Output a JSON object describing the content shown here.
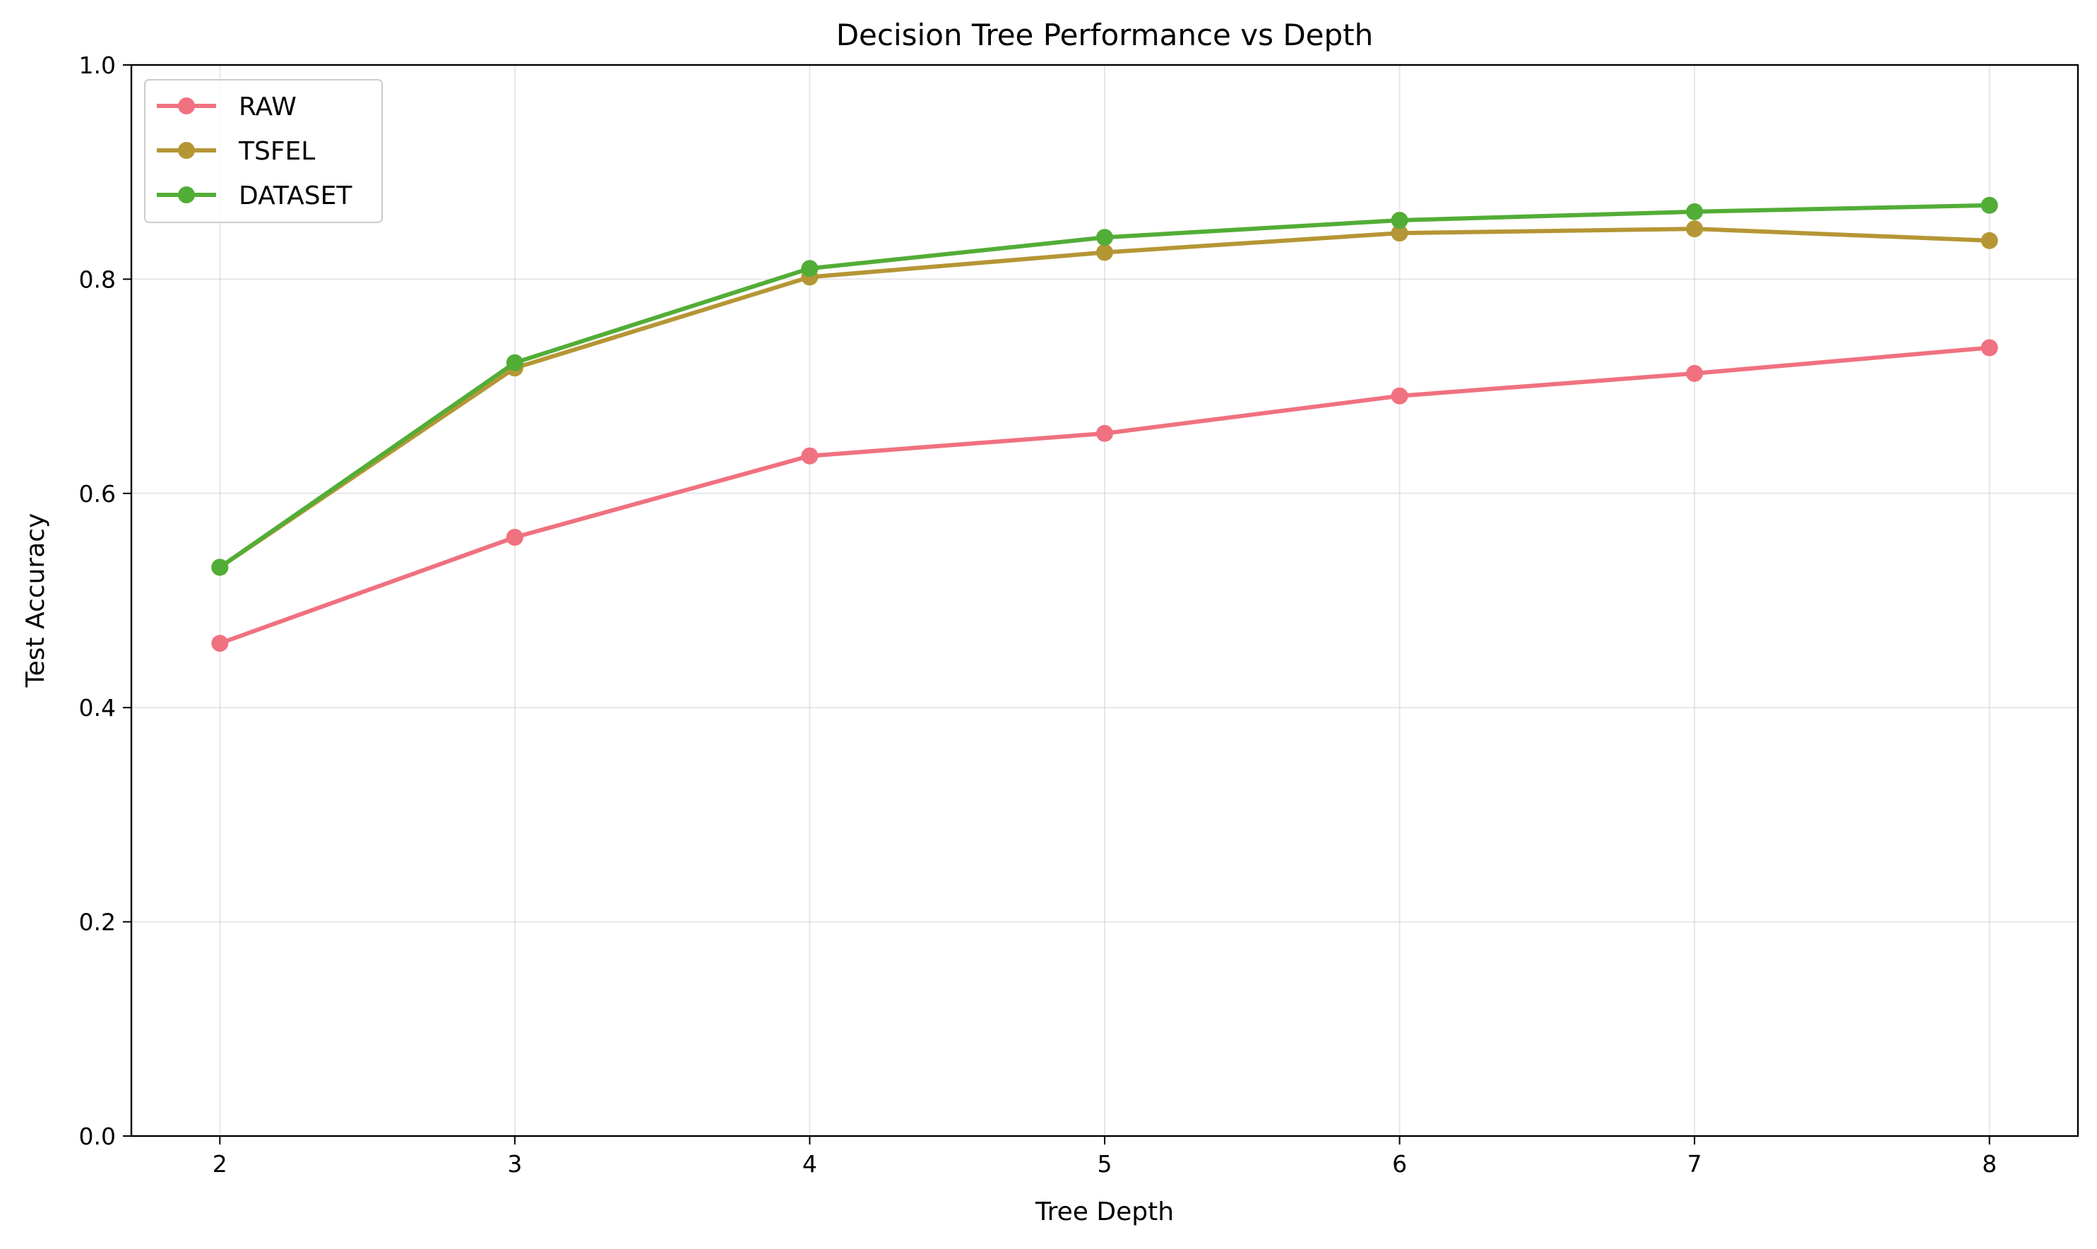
{
  "chart_data": {
    "type": "line",
    "title": "Decision Tree Performance vs Depth",
    "xlabel": "Tree Depth",
    "ylabel": "Test Accuracy",
    "x": [
      2,
      3,
      4,
      5,
      6,
      7,
      8
    ],
    "x_ticks": [
      "2",
      "3",
      "4",
      "5",
      "6",
      "7",
      "8"
    ],
    "xlim": [
      1.7,
      8.3
    ],
    "ylim": [
      0.0,
      1.0
    ],
    "y_ticks": [
      "0.0",
      "0.2",
      "0.4",
      "0.6",
      "0.8",
      "1.0"
    ],
    "grid": true,
    "legend_position": "top-left",
    "series": [
      {
        "name": "RAW",
        "color": "#f0717f",
        "values": [
          0.46,
          0.559,
          0.635,
          0.656,
          0.691,
          0.712,
          0.736
        ]
      },
      {
        "name": "TSFEL",
        "color": "#b59635",
        "values": [
          0.531,
          0.717,
          0.802,
          0.825,
          0.843,
          0.847,
          0.836
        ]
      },
      {
        "name": "DATASET",
        "color": "#52ad36",
        "values": [
          0.531,
          0.722,
          0.81,
          0.839,
          0.855,
          0.863,
          0.869
        ]
      }
    ]
  }
}
